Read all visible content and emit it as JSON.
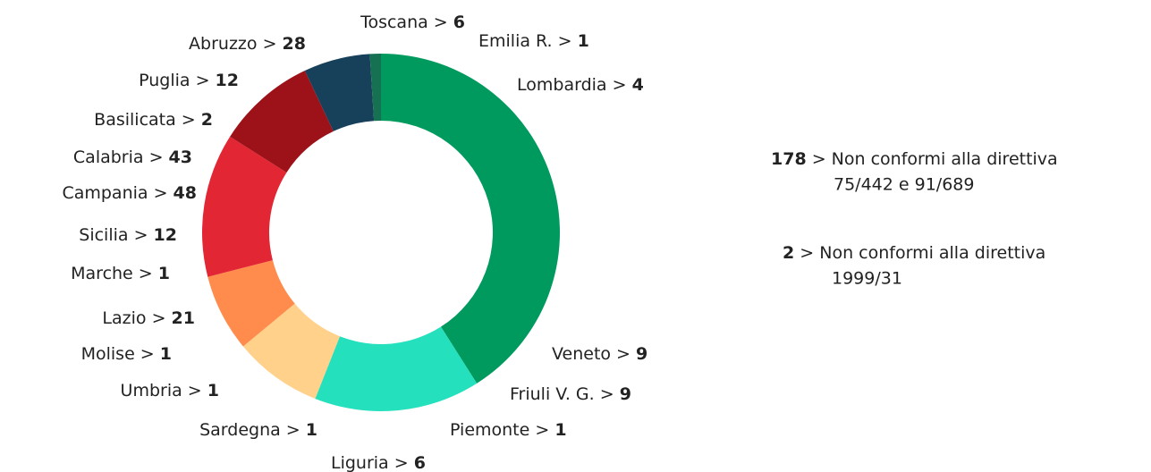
{
  "chart_data": {
    "type": "donut",
    "segments": [
      {
        "value": 41,
        "color": "#009a5e"
      },
      {
        "value": 15,
        "color": "#24e0bd"
      },
      {
        "value": 8,
        "color": "#ffd18a"
      },
      {
        "value": 7,
        "color": "#ff8c4c"
      },
      {
        "value": 13,
        "color": "#e32633"
      },
      {
        "value": 9,
        "color": "#9d1119"
      },
      {
        "value": 6,
        "color": "#17405a"
      },
      {
        "value": 1,
        "color": "#167052"
      }
    ],
    "labels": [
      {
        "name": "Toscana >",
        "value": 6
      },
      {
        "name": "Emilia R. >",
        "value": 1
      },
      {
        "name": "Lombardia >",
        "value": 4
      },
      {
        "name": "Veneto >",
        "value": 9
      },
      {
        "name": "Friuli V. G. >",
        "value": 9
      },
      {
        "name": "Piemonte >",
        "value": 1
      },
      {
        "name": "Liguria >",
        "value": 6
      },
      {
        "name": "Sardegna >",
        "value": 1
      },
      {
        "name": "Umbria >",
        "value": 1
      },
      {
        "name": "Molise >",
        "value": 1
      },
      {
        "name": "Lazio >",
        "value": 21
      },
      {
        "name": "Marche >",
        "value": 1
      },
      {
        "name": "Sicilia >",
        "value": 12
      },
      {
        "name": "Campania >",
        "value": 48
      },
      {
        "name": "Calabria >",
        "value": 43
      },
      {
        "name": "Basilicata >",
        "value": 2
      },
      {
        "name": "Puglia >",
        "value": 12
      },
      {
        "name": "Abruzzo >",
        "value": 28
      }
    ],
    "notes": [
      {
        "value": 178,
        "text": "> Non conformi alla direttiva",
        "text2": "75/442 e 91/689"
      },
      {
        "value": 2,
        "text": "> Non conformi alla direttiva",
        "text2": "1999/31"
      }
    ]
  }
}
